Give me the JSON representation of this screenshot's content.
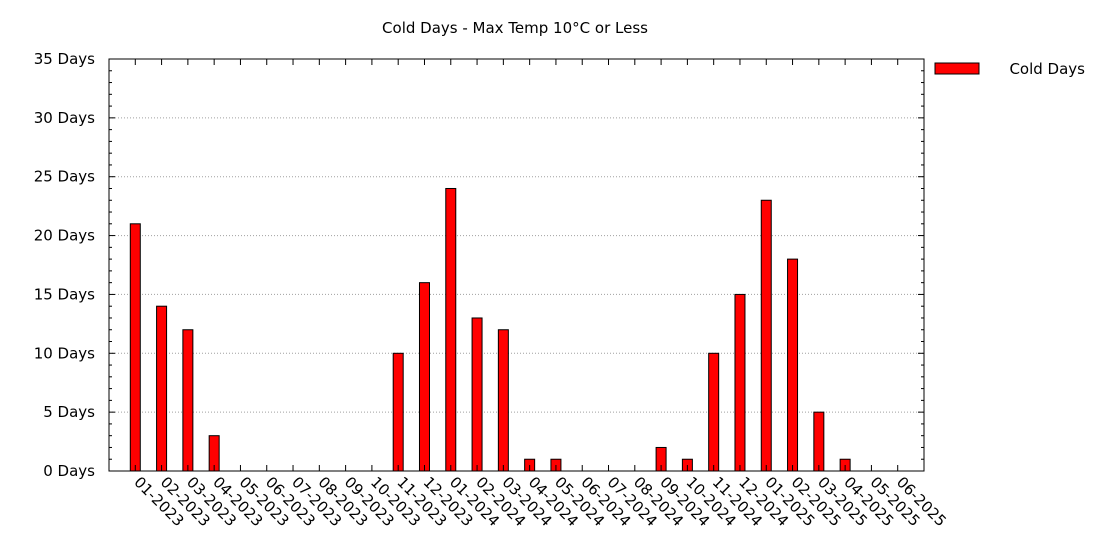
{
  "chart_data": {
    "type": "bar",
    "title": "Cold Days - Max Temp 10°C or Less",
    "xlabel": "",
    "ylabel": "",
    "ylim": [
      0,
      35
    ],
    "y_ticks": [
      0,
      5,
      10,
      15,
      20,
      25,
      30,
      35
    ],
    "y_tick_suffix": " Days",
    "grid": true,
    "legend_position": "top-right",
    "categories": [
      "01-2023",
      "02-2023",
      "03-2023",
      "04-2023",
      "05-2023",
      "06-2023",
      "07-2023",
      "08-2023",
      "09-2023",
      "10-2023",
      "11-2023",
      "12-2023",
      "01-2024",
      "02-2024",
      "03-2024",
      "04-2024",
      "05-2024",
      "06-2024",
      "07-2024",
      "08-2024",
      "09-2024",
      "10-2024",
      "11-2024",
      "12-2024",
      "01-2025",
      "02-2025",
      "03-2025",
      "04-2025",
      "05-2025",
      "06-2025"
    ],
    "series": [
      {
        "name": "Cold Days",
        "color": "#ff0000",
        "values": [
          21,
          14,
          12,
          3,
          0,
          0,
          0,
          0,
          0,
          0,
          10,
          16,
          24,
          13,
          12,
          1,
          1,
          0,
          0,
          0,
          2,
          1,
          10,
          15,
          23,
          18,
          5,
          1,
          0,
          0
        ]
      }
    ]
  }
}
